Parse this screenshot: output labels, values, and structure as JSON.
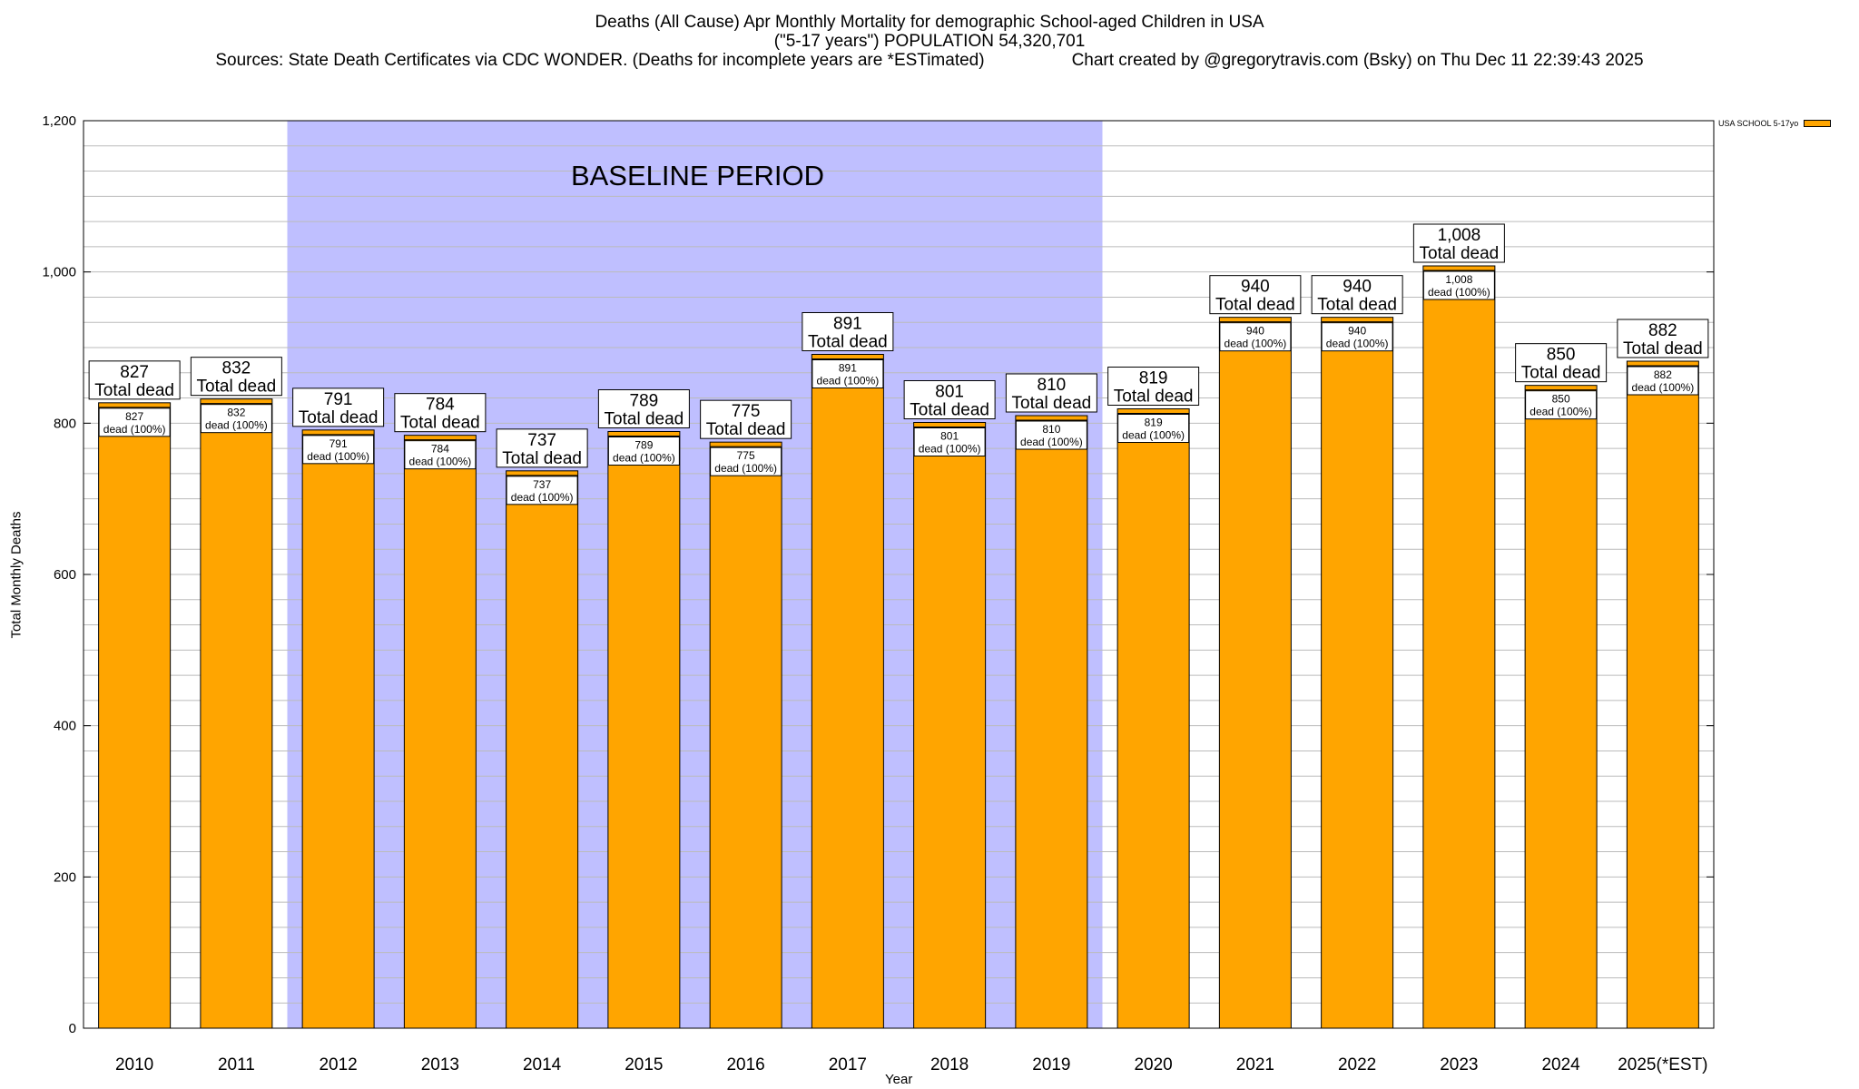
{
  "title": {
    "line1": "Deaths (All Cause) Apr Monthly Mortality for demographic School-aged Children in USA",
    "line2": "(\"5-17 years\") POPULATION 54,320,701",
    "line3_left": "Sources: State Death Certificates via CDC WONDER. (Deaths for incomplete years are *ESTimated)",
    "line3_right": "Chart created by @gregorytravis.com (Bsky) on Thu Dec 11 22:39:43 2025"
  },
  "colors": {
    "bar": "#FFA500",
    "baseline_band": "#BFBFFF",
    "grid": "#BBBBBB"
  },
  "chart_data": {
    "type": "bar",
    "xlabel": "Year",
    "ylabel": "Total Monthly Deaths",
    "ylim": [
      0,
      1200
    ],
    "yticks": [
      0,
      200,
      400,
      600,
      800,
      1000,
      1200
    ],
    "ytick_labels": [
      "0",
      "200",
      "400",
      "600",
      "800",
      "1,000",
      "1,200"
    ],
    "grid": true,
    "legend_position": "top-right",
    "categories": [
      "2010",
      "2011",
      "2012",
      "2013",
      "2014",
      "2015",
      "2016",
      "2017",
      "2018",
      "2019",
      "2020",
      "2021",
      "2022",
      "2023",
      "2024",
      "2025(*EST)"
    ],
    "series": [
      {
        "name": "USA SCHOOL 5-17yo",
        "values": [
          827,
          832,
          791,
          784,
          737,
          789,
          775,
          891,
          801,
          810,
          819,
          940,
          940,
          1008,
          850,
          882
        ]
      }
    ],
    "value_labels": [
      "827",
      "832",
      "791",
      "784",
      "737",
      "789",
      "775",
      "891",
      "801",
      "810",
      "819",
      "940",
      "940",
      "1,008",
      "850",
      "882"
    ],
    "top_label_suffix": "Total dead",
    "inner_label_suffix": "dead (100%)",
    "annotation": {
      "text": "BASELINE PERIOD",
      "start_category": "2012",
      "end_category": "2019"
    }
  }
}
